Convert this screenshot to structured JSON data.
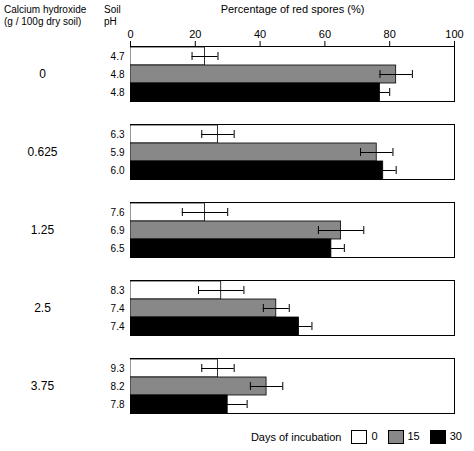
{
  "chart_data": {
    "type": "bar",
    "orientation": "horizontal",
    "xlabel": "Percentage of red spores (%)",
    "ylabel": [
      "Calcium hydroxide",
      "(g / 100g dry soil)"
    ],
    "ph_label": [
      "Soil",
      "pH"
    ],
    "categories": [
      "0",
      "0.625",
      "1.25",
      "2.5",
      "3.75"
    ],
    "series": [
      {
        "name": "0",
        "color": "white",
        "values": [
          23,
          27,
          23,
          28,
          27
        ],
        "errors": [
          4,
          5,
          7,
          7,
          5
        ],
        "ph": [
          "4.7",
          "6.3",
          "7.6",
          "8.3",
          "9.3"
        ]
      },
      {
        "name": "15",
        "color": "#888888",
        "values": [
          82,
          76,
          65,
          45,
          42
        ],
        "errors": [
          5,
          5,
          7,
          4,
          5
        ],
        "ph": [
          "4.8",
          "5.9",
          "6.9",
          "7.4",
          "8.2"
        ]
      },
      {
        "name": "30",
        "color": "black",
        "values": [
          77,
          78,
          62,
          52,
          30
        ],
        "errors": [
          3,
          4,
          4,
          4,
          6
        ],
        "ph": [
          "4.8",
          "6.0",
          "6.5",
          "7.4",
          "7.8"
        ]
      }
    ],
    "xlim": [
      0,
      100
    ],
    "xticks": [
      0,
      20,
      40,
      60,
      80,
      100
    ],
    "legend": "lower right",
    "legend_title": "Days of incubation",
    "grid": false
  }
}
